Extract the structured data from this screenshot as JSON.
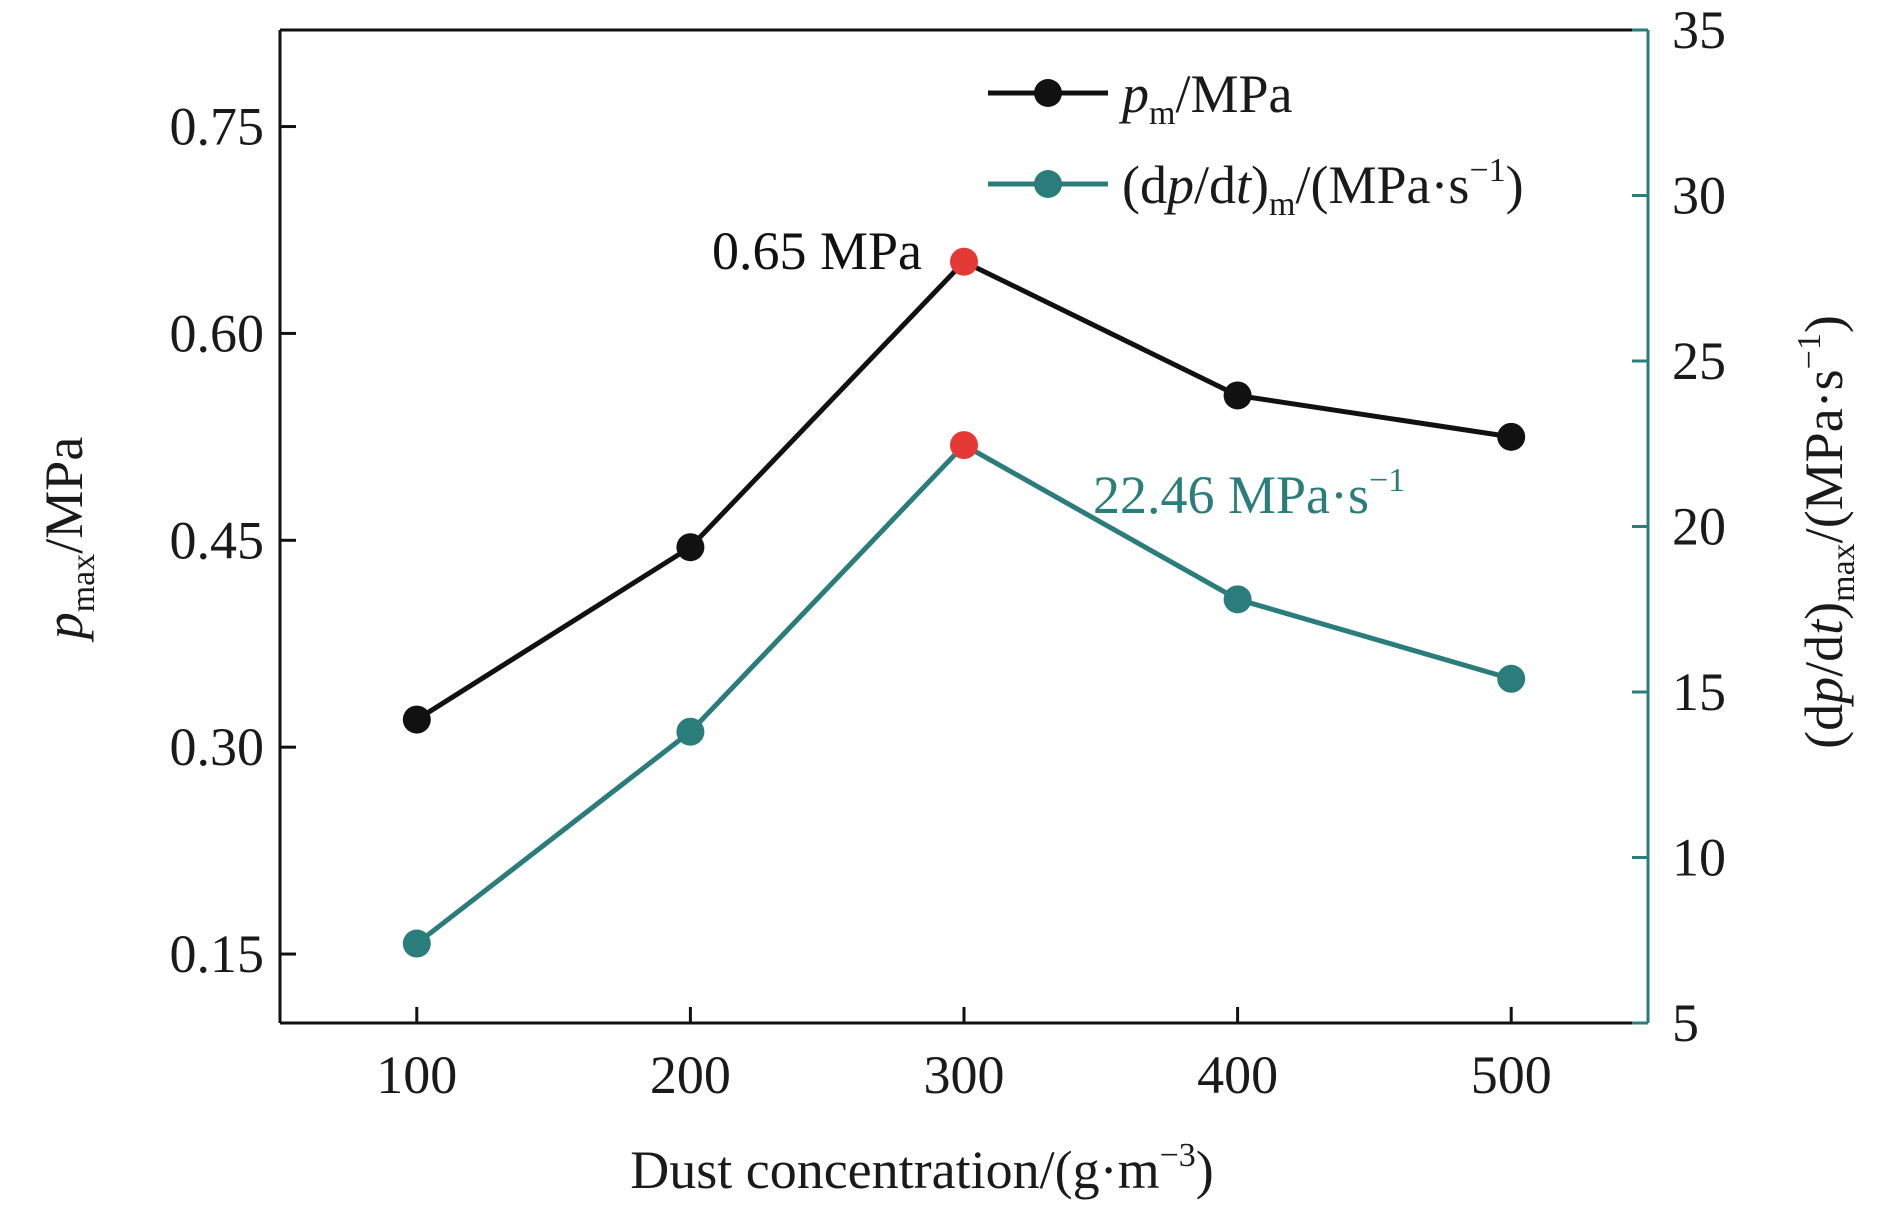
{
  "chart_data": {
    "type": "line",
    "x": [
      100,
      200,
      300,
      400,
      500
    ],
    "xlim": [
      50,
      550
    ],
    "xticks": [
      100,
      200,
      300,
      400,
      500
    ],
    "xlabel": {
      "main": "Dust concentration/(g·m",
      "sup": "−3",
      "close": ")"
    },
    "ylim_left": [
      0.1,
      0.82
    ],
    "yticks_left": [
      "0.15",
      "0.30",
      "0.45",
      "0.60",
      "0.75"
    ],
    "ylabel_left": {
      "var": "p",
      "sub": "max",
      "rest": "/MPa"
    },
    "ylim_right": [
      5,
      35
    ],
    "yticks_right": [
      "5",
      "10",
      "15",
      "20",
      "25",
      "30",
      "35"
    ],
    "ylabel_right": {
      "open": "(d",
      "var1": "p",
      "mid": "/d",
      "var2": "t",
      "close": ")",
      "sub": "max",
      "rest": "/(MPa·s",
      "sup": "−1",
      "end": ")"
    },
    "series": [
      {
        "name": "pm/MPa",
        "name_parts": {
          "var": "p",
          "sub": "m",
          "rest": "/MPa"
        },
        "axis": "left",
        "color": "#111111",
        "values": [
          0.32,
          0.445,
          0.652,
          0.555,
          0.525
        ],
        "highlight_index": 2
      },
      {
        "name": "(dp/dt)m/(MPa·s−1)",
        "name_parts": {
          "open": "(d",
          "var1": "p",
          "mid": "/d",
          "var2": "t",
          "close": ")",
          "sub": "m",
          "rest": "/(MPa·s",
          "sup": "−1",
          "end": ")"
        },
        "axis": "right",
        "color": "#2a7d7b",
        "values": [
          7.4,
          13.8,
          22.46,
          17.8,
          15.4
        ],
        "highlight_index": 2
      }
    ],
    "highlight_color": "#e53935",
    "annotations": [
      {
        "text": "0.65 MPa",
        "series": 0,
        "color": "#111111"
      },
      {
        "text_main": "22.46 MPa·s",
        "text_sup": "−1",
        "series": 1,
        "color": "#2a7d7b"
      }
    ],
    "right_axis_color": "#2a7d7b",
    "legend_position": "top-right",
    "grid": false
  }
}
